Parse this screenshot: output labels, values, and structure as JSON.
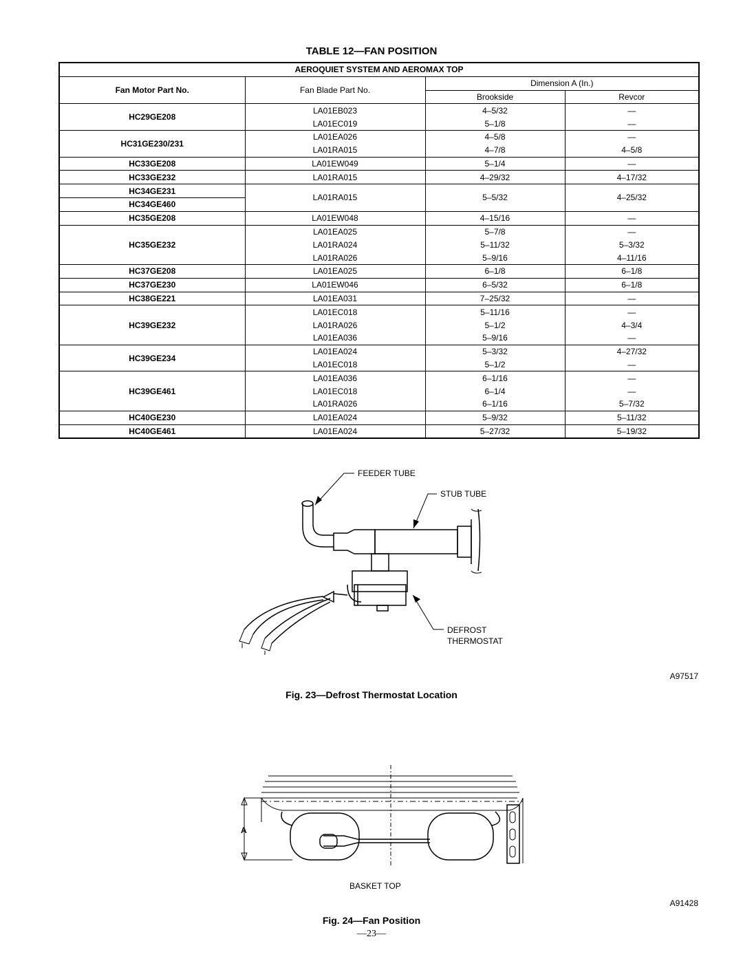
{
  "table": {
    "title": "TABLE 12—FAN POSITION",
    "section": "AEROQUIET SYSTEM AND AEROMAX TOP",
    "headers": {
      "motor": "Fan Motor Part No.",
      "blade": "Fan Blade Part No.",
      "dimension": "Dimension A (In.)",
      "brookside": "Brookside",
      "revcor": "Revcor"
    },
    "groups": [
      {
        "motors": [
          "HC29GE208"
        ],
        "rows": [
          [
            "LA01EB023",
            "4–5/32",
            "—"
          ],
          [
            "LA01EC019",
            "5–1/8",
            "—"
          ]
        ]
      },
      {
        "motors": [
          "HC31GE230/231"
        ],
        "rows": [
          [
            "LA01EA026",
            "4–5/8",
            "—"
          ],
          [
            "LA01RA015",
            "4–7/8",
            "4–5/8"
          ]
        ]
      },
      {
        "motors": [
          "HC33GE208"
        ],
        "rows": [
          [
            "LA01EW049",
            "5–1/4",
            "—"
          ]
        ]
      },
      {
        "motors": [
          "HC33GE232"
        ],
        "rows": [
          [
            "LA01RA015",
            "4–29/32",
            "4–17/32"
          ]
        ]
      },
      {
        "motors": [
          "HC34GE231",
          "HC34GE460"
        ],
        "rows": [
          [
            "LA01RA015",
            "5–5/32",
            "4–25/32"
          ]
        ]
      },
      {
        "motors": [
          "HC35GE208"
        ],
        "rows": [
          [
            "LA01EW048",
            "4–15/16",
            "—"
          ]
        ]
      },
      {
        "motors": [
          "HC35GE232"
        ],
        "rows": [
          [
            "LA01EA025",
            "5–7/8",
            "—"
          ],
          [
            "LA01RA024",
            "5–11/32",
            "5–3/32"
          ],
          [
            "LA01RA026",
            "5–9/16",
            "4–11/16"
          ]
        ]
      },
      {
        "motors": [
          "HC37GE208"
        ],
        "rows": [
          [
            "LA01EA025",
            "6–1/8",
            "6–1/8"
          ]
        ]
      },
      {
        "motors": [
          "HC37GE230"
        ],
        "rows": [
          [
            "LA01EW046",
            "6–5/32",
            "6–1/8"
          ]
        ]
      },
      {
        "motors": [
          "HC38GE221"
        ],
        "rows": [
          [
            "LA01EA031",
            "7–25/32",
            "—"
          ]
        ]
      },
      {
        "motors": [
          "HC39GE232"
        ],
        "rows": [
          [
            "LA01EC018",
            "5–11/16",
            "—"
          ],
          [
            "LA01RA026",
            "5–1/2",
            "4–3/4"
          ],
          [
            "LA01EA036",
            "5–9/16",
            "—"
          ]
        ]
      },
      {
        "motors": [
          "HC39GE234"
        ],
        "rows": [
          [
            "LA01EA024",
            "5–3/32",
            "4–27/32"
          ],
          [
            "LA01EC018",
            "5–1/2",
            "—"
          ]
        ]
      },
      {
        "motors": [
          "HC39GE461"
        ],
        "rows": [
          [
            "LA01EA036",
            "6–1/16",
            "—"
          ],
          [
            "LA01EC018",
            "6–1/4",
            "—"
          ],
          [
            "LA01RA026",
            "6–1/16",
            "5–7/32"
          ]
        ]
      },
      {
        "motors": [
          "HC40GE230"
        ],
        "rows": [
          [
            "LA01EA024",
            "5–9/32",
            "5–11/32"
          ]
        ]
      },
      {
        "motors": [
          "HC40GE461"
        ],
        "rows": [
          [
            "LA01EA024",
            "5–27/32",
            "5–19/32"
          ]
        ]
      }
    ]
  },
  "figure23": {
    "feeder_tube": "FEEDER TUBE",
    "stub_tube": "STUB TUBE",
    "defrost_thermostat": "DEFROST THERMOSTAT",
    "code": "A97517",
    "caption": "Fig. 23—Defrost Thermostat Location"
  },
  "figure24": {
    "dimension": "A",
    "basket_top": "BASKET TOP",
    "code": "A91428",
    "caption": "Fig. 24—Fan Position"
  },
  "page_number": "—23—"
}
